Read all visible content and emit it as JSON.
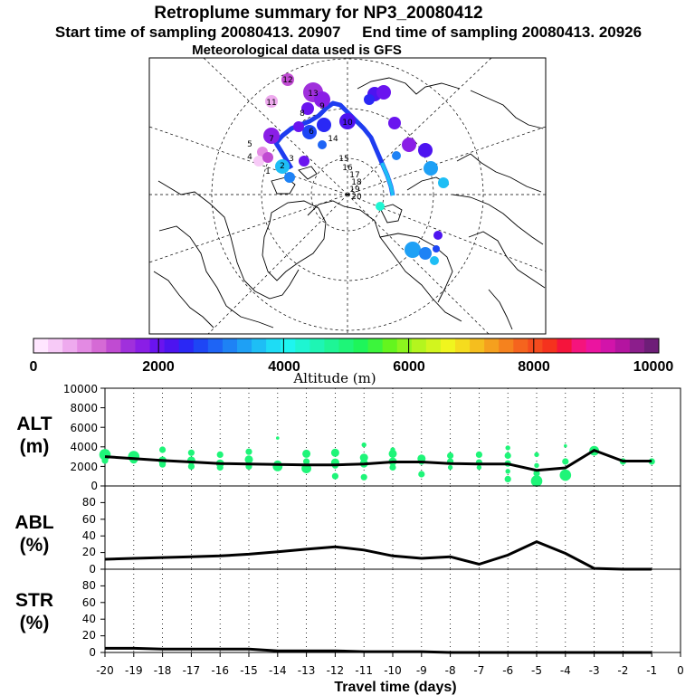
{
  "header": {
    "title": "Retroplume summary for NP3_20080412",
    "sampling": "Start time of sampling 20080413. 20907     End time of sampling 20080413. 20926",
    "meteo": "Meteorological data used is GFS"
  },
  "colorbar": {
    "title": "Altitude (m)",
    "tick_labels": [
      "0",
      "2000",
      "4000",
      "6000",
      "8000",
      "10000"
    ],
    "colors": [
      "#ffe6ff",
      "#f7caf7",
      "#eeaaee",
      "#e38ae3",
      "#d56ad5",
      "#c04bd2",
      "#a030dc",
      "#8a1ee6",
      "#6a14ef",
      "#4d14f0",
      "#2a28f5",
      "#1e46f5",
      "#1e64f5",
      "#1e82f5",
      "#1ea0f5",
      "#1ebef5",
      "#1edcf5",
      "#1ef5f0",
      "#1ef5d2",
      "#1ef5b4",
      "#1ef596",
      "#1ef578",
      "#1ef55a",
      "#3cf53c",
      "#64f51e",
      "#8cf51e",
      "#b4f51e",
      "#d2f51e",
      "#f0f51e",
      "#f5dc1e",
      "#f5be1e",
      "#f5a01e",
      "#f5821e",
      "#f5641e",
      "#f54b1e",
      "#f5321e",
      "#f5143c",
      "#f5147d",
      "#eb14a0",
      "#d214aa",
      "#b414a0",
      "#8c1e8c",
      "#6e1e78"
    ],
    "range": [
      0,
      10000
    ]
  },
  "map": {
    "labels": [
      "1",
      "2",
      "3",
      "4",
      "5",
      "6",
      "7",
      "8",
      "9",
      "10",
      "11",
      "12",
      "13",
      "14",
      "15",
      "16",
      "17",
      "18",
      "19",
      "20"
    ],
    "accent_colors": {
      "track": "#1e3cf0",
      "track_low": "#1ebef5"
    }
  },
  "chart_data": [
    {
      "type": "line",
      "panel": "ALT",
      "panel_label": "ALT",
      "panel_unit": "(m)",
      "x": [
        -20,
        -19,
        -18,
        -17,
        -16,
        -15,
        -14,
        -13,
        -12,
        -11,
        -10,
        -9,
        -8,
        -7,
        -6,
        -5,
        -4,
        -3,
        -2,
        -1
      ],
      "values": [
        3000,
        2800,
        2600,
        2450,
        2300,
        2250,
        2200,
        2150,
        2150,
        2250,
        2450,
        2450,
        2300,
        2250,
        2250,
        1600,
        1850,
        3650,
        2550,
        2550
      ],
      "ylim": [
        0,
        10000
      ],
      "yticks": [
        "0",
        "2000",
        "4000",
        "6000",
        "8000",
        "10000"
      ],
      "scatter_points": [
        [
          -20,
          3200,
          7
        ],
        [
          -20,
          2600,
          4
        ],
        [
          -19,
          3000,
          7
        ],
        [
          -19,
          2700,
          5
        ],
        [
          -18,
          3700,
          4
        ],
        [
          -18,
          2600,
          5
        ],
        [
          -18,
          2200,
          4
        ],
        [
          -17,
          3400,
          4
        ],
        [
          -17,
          2600,
          5
        ],
        [
          -17,
          2000,
          4
        ],
        [
          -16,
          3200,
          4
        ],
        [
          -16,
          2300,
          5
        ],
        [
          -16,
          1900,
          4
        ],
        [
          -15,
          3500,
          4
        ],
        [
          -15,
          2700,
          5
        ],
        [
          -15,
          2000,
          4
        ],
        [
          -14,
          4900,
          2
        ],
        [
          -14,
          2200,
          5
        ],
        [
          -14,
          2000,
          6
        ],
        [
          -13,
          3300,
          5
        ],
        [
          -13,
          2500,
          4
        ],
        [
          -13,
          1800,
          6
        ],
        [
          -12,
          3400,
          5
        ],
        [
          -12,
          2400,
          5
        ],
        [
          -12,
          1000,
          4
        ],
        [
          -12,
          2100,
          4
        ],
        [
          -11,
          4200,
          3
        ],
        [
          -11,
          2900,
          5
        ],
        [
          -11,
          2300,
          5
        ],
        [
          -11,
          900,
          4
        ],
        [
          -10,
          3300,
          5
        ],
        [
          -10,
          2500,
          5
        ],
        [
          -10,
          1900,
          4
        ],
        [
          -10,
          3700,
          3
        ],
        [
          -9,
          2800,
          5
        ],
        [
          -9,
          2500,
          4
        ],
        [
          -9,
          1200,
          4
        ],
        [
          -8,
          3100,
          4
        ],
        [
          -8,
          2500,
          4
        ],
        [
          -8,
          1900,
          3
        ],
        [
          -7,
          3200,
          4
        ],
        [
          -7,
          2400,
          4
        ],
        [
          -7,
          1900,
          3
        ],
        [
          -6,
          3900,
          3
        ],
        [
          -6,
          3100,
          4
        ],
        [
          -6,
          2300,
          4
        ],
        [
          -6,
          700,
          4
        ],
        [
          -6,
          1500,
          3
        ],
        [
          -5,
          3200,
          3
        ],
        [
          -5,
          2100,
          3
        ],
        [
          -5,
          500,
          7
        ],
        [
          -5,
          1300,
          4
        ],
        [
          -4,
          4100,
          2
        ],
        [
          -4,
          2500,
          4
        ],
        [
          -4,
          1100,
          7
        ],
        [
          -3,
          3600,
          6
        ],
        [
          -2,
          2500,
          4
        ],
        [
          -1,
          2500,
          4
        ]
      ]
    },
    {
      "type": "line",
      "panel": "ABL",
      "panel_label": "ABL",
      "panel_unit": "(%)",
      "x": [
        -20,
        -19,
        -18,
        -17,
        -16,
        -15,
        -14,
        -13,
        -12,
        -11,
        -10,
        -9,
        -8,
        -7,
        -6,
        -5,
        -4,
        -3,
        -2,
        -1
      ],
      "values": [
        12,
        13,
        14,
        15,
        16,
        18,
        21,
        24,
        27,
        23,
        16,
        13,
        15,
        6,
        17,
        33,
        19,
        1,
        0,
        0
      ],
      "ylim": [
        0,
        100
      ],
      "yticks": [
        "0",
        "20",
        "40",
        "60",
        "80"
      ]
    },
    {
      "type": "line",
      "panel": "STR",
      "panel_label": "STR",
      "panel_unit": "(%)",
      "x": [
        -20,
        -19,
        -18,
        -17,
        -16,
        -15,
        -14,
        -13,
        -12,
        -11,
        -10,
        -9,
        -8,
        -7,
        -6,
        -5,
        -4,
        -3,
        -2,
        -1
      ],
      "values": [
        5,
        5,
        4,
        4,
        4,
        4,
        2,
        2,
        2,
        1,
        1,
        1,
        0,
        0,
        0,
        0,
        0,
        0,
        0,
        0
      ],
      "ylim": [
        0,
        100
      ],
      "yticks": [
        "0",
        "20",
        "40",
        "60",
        "80"
      ],
      "xticks": [
        "-20",
        "-19",
        "-18",
        "-17",
        "-16",
        "-15",
        "-14",
        "-13",
        "-12",
        "-11",
        "-10",
        "-9",
        "-8",
        "-7",
        "-6",
        "-5",
        "-4",
        "-3",
        "-2",
        "-1",
        "0"
      ],
      "xlabel": "Travel time (days)"
    }
  ]
}
